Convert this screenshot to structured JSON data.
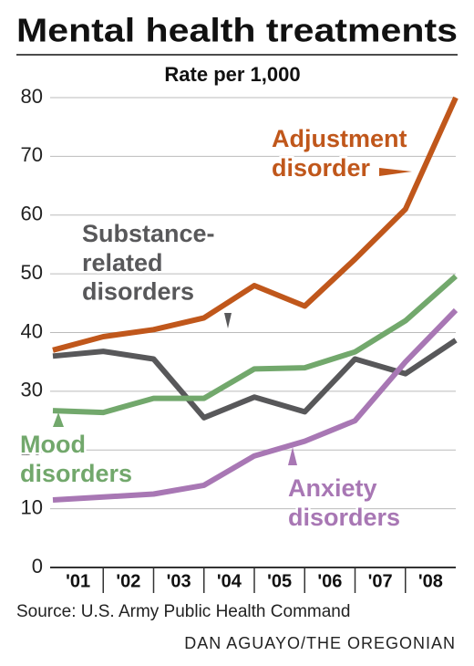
{
  "chart_data": {
    "type": "line",
    "title": "Mental health treatments",
    "subtitle": "Rate per 1,000",
    "categories": [
      "'01",
      "'02",
      "'03",
      "'04",
      "'05",
      "'06",
      "'07",
      "'08",
      null
    ],
    "series": [
      {
        "name": "Adjustment\ndisorder",
        "color": "#c0571b",
        "values": [
          37,
          39.3,
          40.5,
          42.5,
          48,
          44.5,
          52.5,
          61,
          80
        ]
      },
      {
        "name": "Substance-\nrelated\ndisorders",
        "color": "#58585a",
        "values": [
          36,
          36.8,
          35.5,
          25.5,
          29,
          26.5,
          35.5,
          33,
          38.7
        ]
      },
      {
        "name": "Mood\ndisorders",
        "color": "#72a86c",
        "values": [
          26.7,
          26.4,
          28.8,
          28.8,
          33.8,
          34,
          36.7,
          42,
          49.6
        ]
      },
      {
        "name": "Anxiety\ndisorders",
        "color": "#a877b4",
        "values": [
          11.5,
          12,
          12.5,
          14,
          19,
          21.5,
          25,
          35,
          43.8
        ]
      }
    ],
    "ylim": [
      0,
      80
    ],
    "yticks": [
      0,
      10,
      20,
      30,
      40,
      50,
      60,
      70,
      80
    ],
    "grid": true,
    "source": "Source: U.S. Army Public Health Command",
    "credit": "DAN AGUAYO/THE OREGONIAN"
  }
}
